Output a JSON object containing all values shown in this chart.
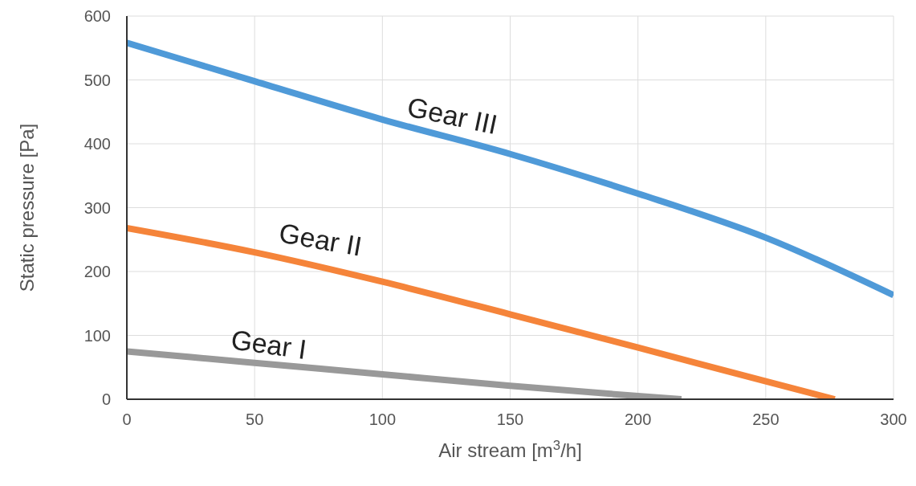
{
  "chart_data": {
    "type": "line",
    "xlabel": "Air stream [m$^{3}$/h]",
    "ylabel": "Static pressure [Pa]",
    "xlim": [
      0,
      300
    ],
    "xticks": [
      0,
      50,
      100,
      150,
      200,
      250,
      300
    ],
    "ylim": [
      0,
      600
    ],
    "yticks": [
      0,
      100,
      200,
      300,
      400,
      500,
      600
    ],
    "grid": true,
    "series": [
      {
        "name": "Gear I",
        "color": "#999999",
        "x": [
          0,
          50,
          100,
          150,
          200,
          217
        ],
        "values": [
          75,
          57,
          39,
          21,
          5,
          0
        ]
      },
      {
        "name": "Gear II",
        "color": "#f5843a",
        "x": [
          0,
          50,
          100,
          150,
          200,
          250,
          277
        ],
        "values": [
          268,
          230,
          184,
          133,
          81,
          28,
          0
        ]
      },
      {
        "name": "Gear III",
        "color": "#4f9ad8",
        "x": [
          0,
          50,
          100,
          150,
          200,
          250,
          300
        ],
        "values": [
          558,
          498,
          438,
          384,
          322,
          253,
          163
        ]
      }
    ]
  }
}
